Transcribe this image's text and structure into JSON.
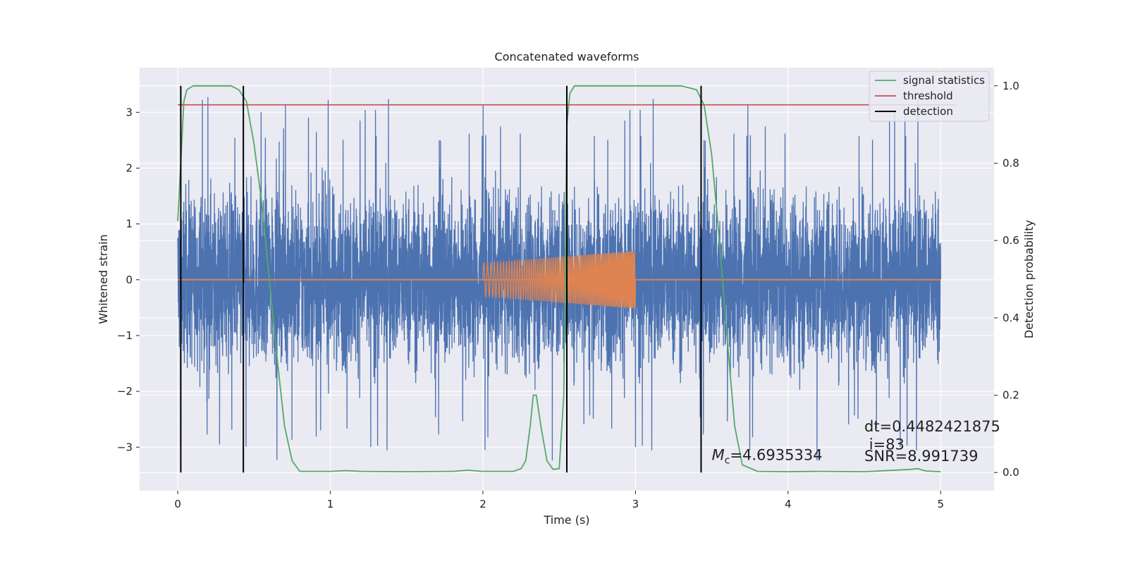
{
  "chart_data": {
    "type": "line",
    "title": "Concatenated waveforms",
    "xlabel": "Time (s)",
    "ylabel": "Whitened strain",
    "y2label": "Detection probability",
    "xlim": [
      -0.25,
      5.35
    ],
    "ylim": [
      -3.78,
      3.8
    ],
    "y2lim": [
      -0.047,
      1.047
    ],
    "x_ticks": [
      0,
      1,
      2,
      3,
      4,
      5
    ],
    "y_ticks": [
      -3,
      -2,
      -1,
      0,
      1,
      2,
      3
    ],
    "y_tick_labels": [
      "−3",
      "−2",
      "−1",
      "0",
      "1",
      "2",
      "3"
    ],
    "y2_ticks": [
      0.0,
      0.2,
      0.4,
      0.6,
      0.8,
      1.0
    ],
    "y2_tick_labels": [
      "0.0",
      "0.2",
      "0.4",
      "0.6",
      "0.8",
      "1.0"
    ],
    "grid": true,
    "legend_position": "top-right",
    "series": [
      {
        "axis": "left",
        "color": "#4c72b0",
        "style": "noise",
        "x_range": [
          0,
          5
        ],
        "amplitude_range": [
          -3.45,
          3.48
        ]
      },
      {
        "axis": "left",
        "color": "#dd8452",
        "style": "chirp",
        "x_range": [
          2.0,
          3.0
        ],
        "amplitude_start": 0.3,
        "amplitude_end": 0.52
      },
      {
        "name": "signal statistics",
        "axis": "right",
        "color": "#55a868",
        "x": [
          0,
          0.02,
          0.04,
          0.06,
          0.1,
          0.2,
          0.35,
          0.4,
          0.45,
          0.5,
          0.55,
          0.6,
          0.65,
          0.7,
          0.75,
          0.8,
          1.0,
          1.1,
          1.2,
          1.5,
          1.8,
          1.9,
          2.0,
          2.2,
          2.25,
          2.28,
          2.31,
          2.33,
          2.35,
          2.38,
          2.42,
          2.46,
          2.5,
          2.53,
          2.55,
          2.57,
          2.6,
          2.7,
          3.0,
          3.3,
          3.4,
          3.45,
          3.5,
          3.55,
          3.6,
          3.65,
          3.7,
          3.8,
          4.0,
          4.2,
          4.5,
          4.8,
          4.85,
          4.9,
          5.0
        ],
        "values": [
          0.65,
          0.8,
          0.96,
          0.99,
          1.0,
          1.0,
          1.0,
          0.99,
          0.96,
          0.85,
          0.7,
          0.5,
          0.3,
          0.12,
          0.03,
          0.003,
          0.003,
          0.005,
          0.003,
          0.002,
          0.003,
          0.006,
          0.003,
          0.003,
          0.01,
          0.03,
          0.12,
          0.2,
          0.2,
          0.12,
          0.03,
          0.008,
          0.01,
          0.2,
          0.9,
          0.98,
          1.0,
          1.0,
          1.0,
          1.0,
          0.99,
          0.95,
          0.82,
          0.6,
          0.35,
          0.12,
          0.02,
          0.003,
          0.002,
          0.003,
          0.002,
          0.008,
          0.01,
          0.004,
          0.002
        ]
      },
      {
        "name": "threshold",
        "axis": "right",
        "color": "#c44e52",
        "x": [
          0,
          5.1
        ],
        "values": [
          0.951,
          0.951
        ]
      }
    ],
    "detections": {
      "name": "detection",
      "color": "#000000",
      "x": [
        0.02,
        0.43,
        2.55,
        3.43
      ]
    },
    "annotations": [
      {
        "text": "dt=0.4482421875",
        "x": 4.5,
        "y": -2.72
      },
      {
        "text": " i=83",
        "x": 4.5,
        "y": -3.04
      },
      {
        "text": "SNR=8.991739",
        "x": 4.5,
        "y": -3.25
      },
      {
        "prefix": "M",
        "sub": "c",
        "text": "=4.6935334",
        "x": 3.5,
        "y": -3.23
      }
    ],
    "colors": {
      "background": "#eaeaf2",
      "grid": "#ffffff",
      "text": "#222222"
    }
  }
}
